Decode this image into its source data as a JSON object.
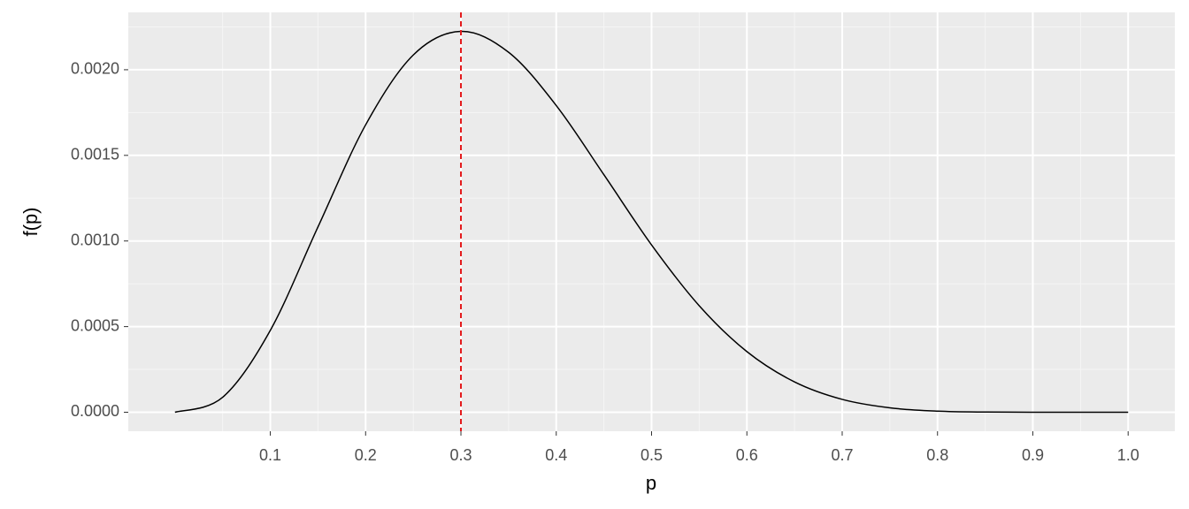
{
  "chart_data": {
    "type": "line",
    "x": [
      0,
      0.05,
      0.1,
      0.15,
      0.2,
      0.25,
      0.3,
      0.35,
      0.4,
      0.45,
      0.5,
      0.55,
      0.6,
      0.65,
      0.7,
      0.75,
      0.8,
      0.85,
      0.9,
      0.95,
      1
    ],
    "series": [
      {
        "color": "#000000",
        "values": [
          0,
          8.73e-05,
          0.000478,
          0.001082,
          0.001678,
          0.002086,
          0.002224,
          0.002102,
          0.001791,
          0.001387,
          0.000977,
          0.000622,
          0.000354,
          0.000177,
          7.5e-05,
          2.57e-05,
          6.55e-06,
          1.05e-06,
          7.29e-08,
          0,
          0
        ]
      }
    ],
    "x_label": "p",
    "y_label": "f(p)",
    "xlim": [
      -0.049,
      1.049
    ],
    "ylim": [
      -0.000111,
      0.002335
    ],
    "xticks": [
      0.1,
      0.2,
      0.3,
      0.4,
      0.5,
      0.6,
      0.7,
      0.8,
      0.9,
      {
        "value": 1,
        "label": "1.0"
      }
    ],
    "yticks": [
      {
        "value": 0,
        "label": "0.0000"
      },
      {
        "value": 0.0005,
        "label": "0.0005"
      },
      {
        "value": 0.001,
        "label": "0.0010"
      },
      {
        "value": 0.0015,
        "label": "0.0015"
      },
      {
        "value": 0.002,
        "label": "0.0020"
      }
    ],
    "vline": {
      "x": 0.3,
      "color": "#e41a1c"
    },
    "grid": true
  }
}
